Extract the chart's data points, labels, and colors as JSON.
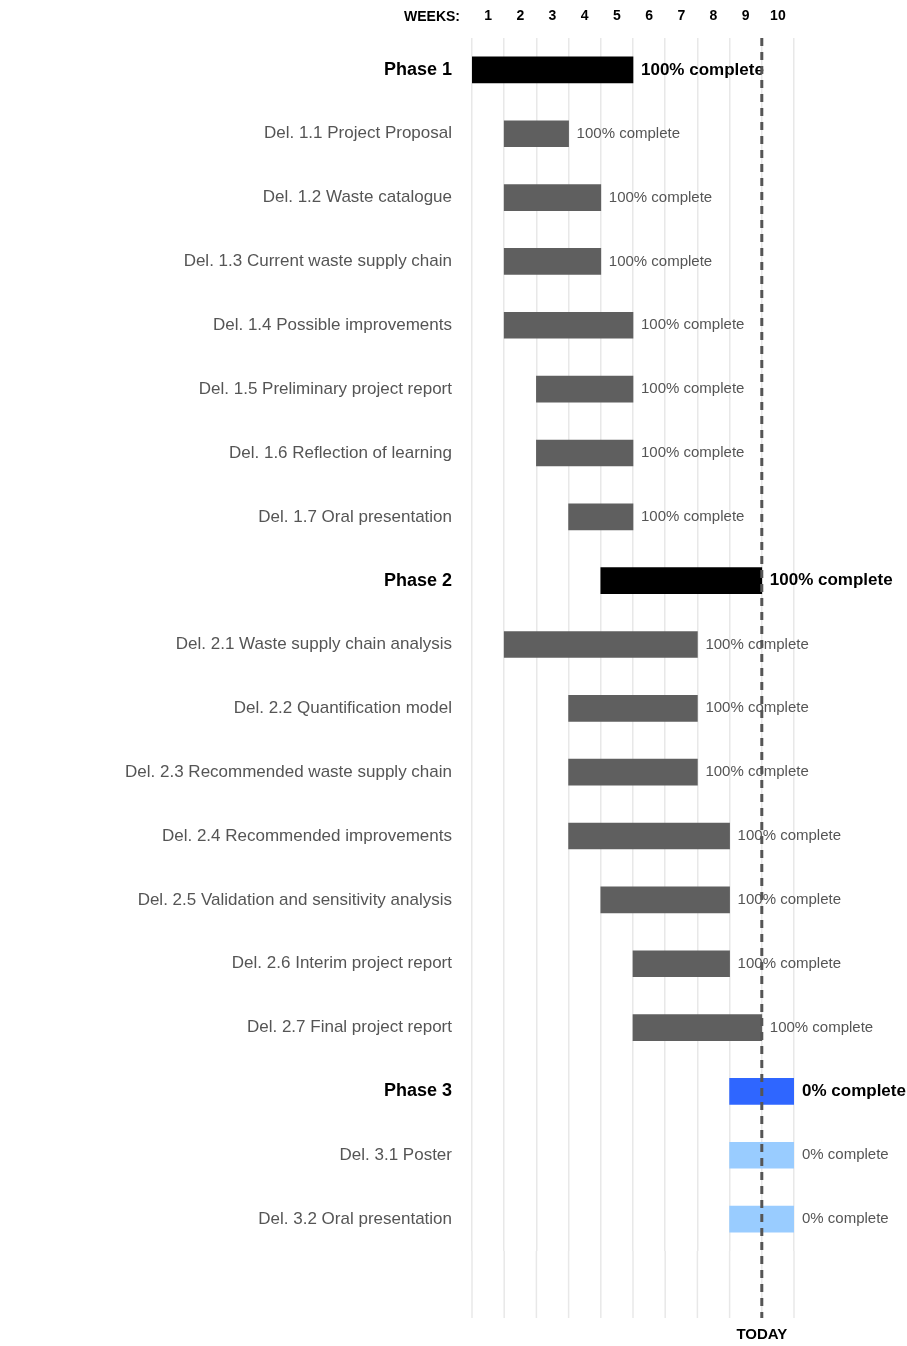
{
  "chart_data": {
    "type": "bar",
    "orientation": "horizontal",
    "xlabel": "WEEKS:",
    "categories": [
      "Phase 1",
      "Del. 1.1 Project Proposal",
      "Del. 1.2 Waste catalogue",
      "Del. 1.3 Current waste supply chain",
      "Del. 1.4 Possible improvements",
      "Del. 1.5 Preliminary project report",
      "Del. 1.6 Reflection of learning",
      "Del. 1.7 Oral presentation",
      "Phase 2",
      "Del. 2.1 Waste supply chain analysis",
      "Del. 2.2 Quantification model",
      "Del. 2.3 Recommended waste supply chain",
      "Del. 2.4 Recommended improvements",
      "Del. 2.5 Validation and sensitivity analysis",
      "Del. 2.6 Interim project report",
      "Del. 2.7 Final project report",
      "Phase 3",
      "Del. 3.1 Poster",
      "Del. 3.2 Oral presentation"
    ],
    "base": [
      0.5,
      1.5,
      1.5,
      1.5,
      1.5,
      2.5,
      2.5,
      3.5,
      4.5,
      1.5,
      3.5,
      3.5,
      3.5,
      4.5,
      5.5,
      5.5,
      8.5,
      8.5,
      8.5
    ],
    "values": [
      5,
      2,
      3,
      3,
      4,
      3,
      3,
      2,
      5,
      6,
      4,
      4,
      5,
      4,
      3,
      4,
      2,
      2,
      2
    ],
    "colors": [
      "#000000",
      "#5f5f5f",
      "#5f5f5f",
      "#5f5f5f",
      "#5f5f5f",
      "#5f5f5f",
      "#5f5f5f",
      "#5f5f5f",
      "#000000",
      "#5f5f5f",
      "#5f5f5f",
      "#5f5f5f",
      "#5f5f5f",
      "#5f5f5f",
      "#5f5f5f",
      "#5f5f5f",
      "#2f66ff",
      "#99ccff",
      "#99ccff"
    ],
    "annotations": [
      {
        "text": "100% complete",
        "x": 5.5,
        "y": "Phase 1"
      },
      {
        "text": "100% complete",
        "x": 3.5,
        "y": "Del. 1.1 Project Proposal"
      },
      {
        "text": "100% complete",
        "x": 4.5,
        "y": "Del. 1.2 Waste catalogue"
      },
      {
        "text": "100% complete",
        "x": 4.5,
        "y": "Del. 1.3 Current waste supply chain"
      },
      {
        "text": "100% complete",
        "x": 5.5,
        "y": "Del. 1.4 Possible improvements"
      },
      {
        "text": "100% complete",
        "x": 5.5,
        "y": "Del. 1.5 Preliminary project report"
      },
      {
        "text": "100% complete",
        "x": 5.5,
        "y": "Del. 1.6 Reflection of learning"
      },
      {
        "text": "100% complete",
        "x": 5.5,
        "y": "Del. 1.7 Oral presentation"
      },
      {
        "text": "100% complete",
        "x": 9.5,
        "y": "Phase 2"
      },
      {
        "text": "100% complete",
        "x": 7.5,
        "y": "Del. 2.1 Waste supply chain analysis"
      },
      {
        "text": "100% complete",
        "x": 7.5,
        "y": "Del. 2.2 Quantification model"
      },
      {
        "text": "100% complete",
        "x": 7.5,
        "y": "Del. 2.3 Recommended waste supply chain"
      },
      {
        "text": "100% complete",
        "x": 8.5,
        "y": "Del. 2.4 Recommended improvements"
      },
      {
        "text": "100% complete",
        "x": 8.5,
        "y": "Del. 2.5 Validation and sensitivity analysis"
      },
      {
        "text": "100% complete",
        "x": 8.5,
        "y": "Del. 2.6 Interim project report"
      },
      {
        "text": "100% complete",
        "x": 9.5,
        "y": "Del. 2.7 Final project report"
      },
      {
        "text": "0% complete",
        "x": 10.5,
        "y": "Phase 3"
      },
      {
        "text": "0% complete",
        "x": 10.5,
        "y": "Del. 3.1 Poster"
      },
      {
        "text": "0% complete",
        "x": 10.5,
        "y": "Del. 3.2 Oral presentation"
      }
    ],
    "xlim": [
      0.5,
      10.5
    ],
    "xticks": [
      {
        "value": 0.5,
        "label": null
      },
      1,
      {
        "value": 1.5,
        "label": null
      },
      2,
      {
        "value": 2.5,
        "label": null
      },
      3,
      {
        "value": 3.5,
        "label": null
      },
      4,
      {
        "value": 4.5,
        "label": null
      },
      5,
      {
        "value": 5.5,
        "label": null
      },
      6,
      {
        "value": 6.5,
        "label": null
      },
      7,
      {
        "value": 7.5,
        "label": null
      },
      8,
      {
        "value": 8.5,
        "label": null
      },
      9,
      {
        "value": 9.5,
        "label": null
      },
      10,
      {
        "value": 10.5,
        "label": null
      }
    ],
    "grid": "x",
    "legend": false,
    "ref_lines": [
      {
        "axis": "x",
        "value": 9.5,
        "label": "TODAY",
        "color": "#555555",
        "line_style": "dashed"
      }
    ]
  }
}
